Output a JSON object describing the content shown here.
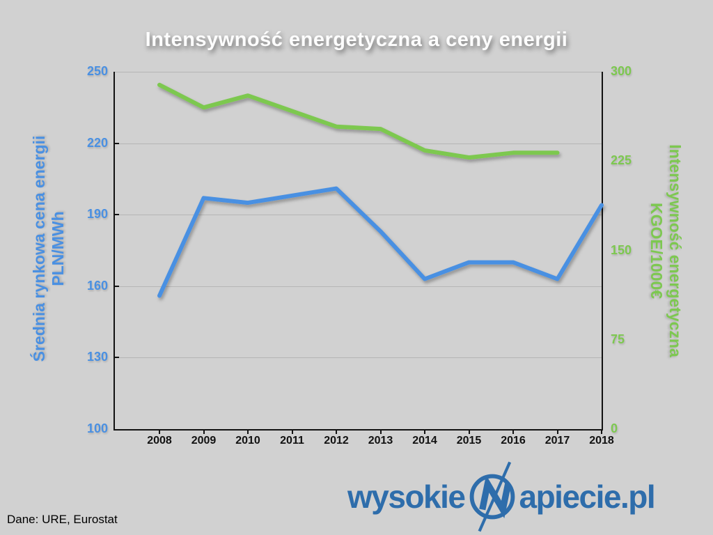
{
  "title": "Intensywność energetyczna a ceny energii",
  "source": "Dane: URE, Eurostat",
  "logo": {
    "left": "wysokie",
    "right": "apiecie.pl",
    "emblem": "lightning-n"
  },
  "colors": {
    "background": "#d1d1d1",
    "title_text": "#fdfdfd",
    "price_blue": "#4a90e2",
    "intensity_green": "#7dc850",
    "logo_blue": "#2e6dab",
    "grid_gray": "#b5b5b5",
    "axis_black": "#111111",
    "year_text": "#111111"
  },
  "chart_data": {
    "type": "line",
    "title": "Intensywność energetyczna a ceny energii",
    "x": [
      "2008",
      "2009",
      "2010",
      "2011",
      "2012",
      "2013",
      "2014",
      "2015",
      "2016",
      "2017",
      "2018"
    ],
    "series": [
      {
        "name": "Średnia rynkowa cena energii PLN/MWh",
        "axis": "left",
        "color": "#4a90e2",
        "values": [
          156,
          197,
          195,
          198,
          201,
          183,
          163,
          170,
          170,
          163,
          194
        ]
      },
      {
        "name": "Intensywność energetyczna KGOE/1000€",
        "axis": "right",
        "color": "#7dc850",
        "values": [
          289,
          270,
          280,
          267,
          254,
          252,
          234,
          228,
          232,
          232,
          null
        ]
      }
    ],
    "left_axis": {
      "label_line1": "Średnia rynkowa cena energii",
      "label_line2": "PLN/MWh",
      "ticks": [
        250,
        220,
        190,
        160,
        130,
        100
      ],
      "min": 100,
      "max": 250
    },
    "right_axis": {
      "label_line1": "Intensywność energetyczna",
      "label_line2": "KGOE/1000€",
      "ticks": [
        300,
        225,
        150,
        75,
        0
      ],
      "min": 0,
      "max": 300
    },
    "grid": true,
    "legend": "none"
  }
}
